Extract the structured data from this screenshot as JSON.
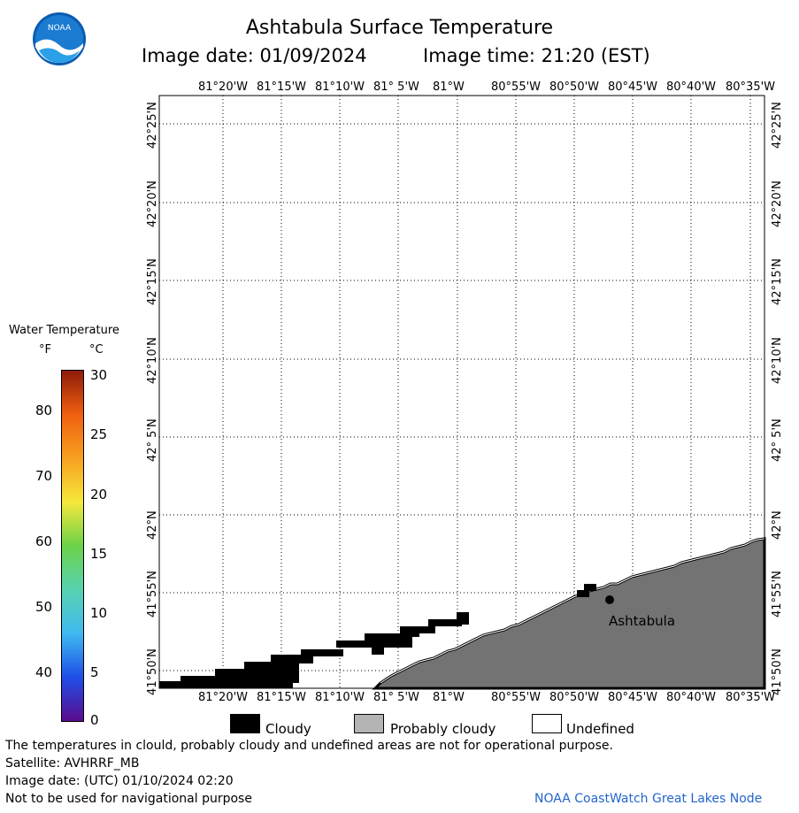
{
  "header": {
    "title": "Ashtabula Surface Temperature",
    "image_date": "Image date: 01/09/2024",
    "image_time": "Image time: 21:20 (EST)"
  },
  "logo": {
    "text": "NOAA"
  },
  "map": {
    "lon_labels": [
      "81°20'W",
      "81°15'W",
      "81°10'W",
      "81° 5'W",
      "81°W",
      "80°55'W",
      "80°50'W",
      "80°45'W",
      "80°40'W",
      "80°35'W"
    ],
    "lat_labels": [
      "42°25'N",
      "42°20'N",
      "42°15'N",
      "42°10'N",
      "42° 5'N",
      "42°N",
      "41°55'N",
      "41°50'N"
    ],
    "city": {
      "name": "Ashtabula"
    },
    "colors": {
      "land": "#737373",
      "cloud": "#000000",
      "grid": "#000000"
    }
  },
  "colorbar": {
    "title": "Water Temperature",
    "unit_f": "°F",
    "unit_c": "°C",
    "f_ticks": [
      "80",
      "70",
      "60",
      "50",
      "40"
    ],
    "c_ticks": [
      "30",
      "25",
      "20",
      "15",
      "10",
      "5",
      "0"
    ],
    "range_c": [
      0,
      30
    ],
    "palette": [
      "#5c0b8e",
      "#1e4fe8",
      "#3fb9f0",
      "#58d2b0",
      "#6cd24a",
      "#f5e83c",
      "#f7a020",
      "#f06010",
      "#8e1b0a"
    ]
  },
  "legend": {
    "items": [
      {
        "label": "Cloudy",
        "color": "#000000"
      },
      {
        "label": "Probably cloudy",
        "color": "#b4b4b4"
      },
      {
        "label": "Undefined",
        "color": "#ffffff"
      }
    ]
  },
  "footer": {
    "note": "The temperatures in clould, probably cloudy and undefined areas are not for operational purpose.",
    "satellite": "Satellite: AVHRRF_MB",
    "utc_date": "Image date: (UTC) 01/10/2024  02:20",
    "nav_warning": "Not to be used for navigational purpose",
    "credit": "NOAA CoastWatch Great Lakes Node"
  }
}
